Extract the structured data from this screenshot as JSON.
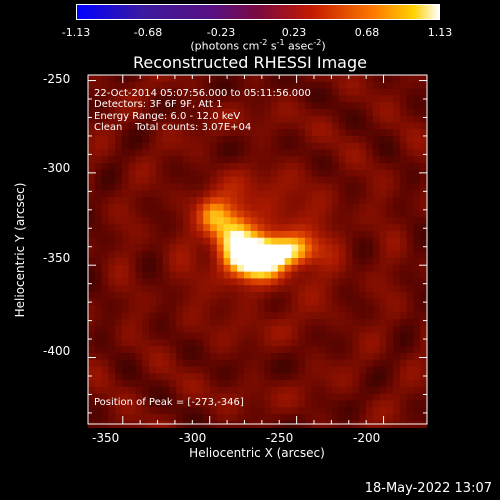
{
  "colorbar": {
    "ticks": [
      "-1.13",
      "-0.68",
      "-0.23",
      "0.23",
      "0.68",
      "1.13"
    ],
    "unit_label_prefix": "(photons cm",
    "unit_exp1": "-2",
    "unit_mid": " s",
    "unit_exp2": "-1",
    "unit_mid2": " asec",
    "unit_exp3": "-2",
    "unit_suffix": ")",
    "range": [
      -1.13,
      1.13
    ]
  },
  "annotations": {
    "line1": "22-Oct-2014 05:07:56.000 to 05:11:56.000",
    "line2": "Detectors: 3F 6F 9F, Att 1",
    "line3": "Energy Range: 6.0 - 12.0 keV",
    "line4": "Clean    Total counts: 3.07E+04",
    "peak": "Position of Peak = [-273,-346]"
  },
  "footer_timestamp": "18-May-2022 13:07",
  "chart_data": {
    "type": "heatmap",
    "title": "Reconstructed RHESSI Image",
    "xlabel": "Heliocentric X (arcsec)",
    "ylabel": "Heliocentric Y (arcsec)",
    "xlim": [
      -370,
      -175
    ],
    "ylim": [
      -436,
      -247
    ],
    "x_ticks": [
      -350,
      -300,
      -250,
      -200
    ],
    "y_ticks": [
      -250,
      -300,
      -350,
      -400
    ],
    "colormap": "red temperature (black-red-yellow-white)",
    "peak": [
      -273,
      -346
    ],
    "sources": [
      {
        "x": -273,
        "y": -346,
        "sx": 9,
        "sy": 7,
        "amp": 1.0
      },
      {
        "x": -252,
        "y": -342,
        "sx": 9,
        "sy": 6,
        "amp": 0.55
      },
      {
        "x": -287,
        "y": -333,
        "sx": 8,
        "sy": 12,
        "amp": 0.5
      },
      {
        "x": -298,
        "y": -323,
        "sx": 6,
        "sy": 7,
        "amp": 0.32
      },
      {
        "x": -268,
        "y": -338,
        "sx": 26,
        "sy": 22,
        "amp": 0.18
      }
    ]
  }
}
